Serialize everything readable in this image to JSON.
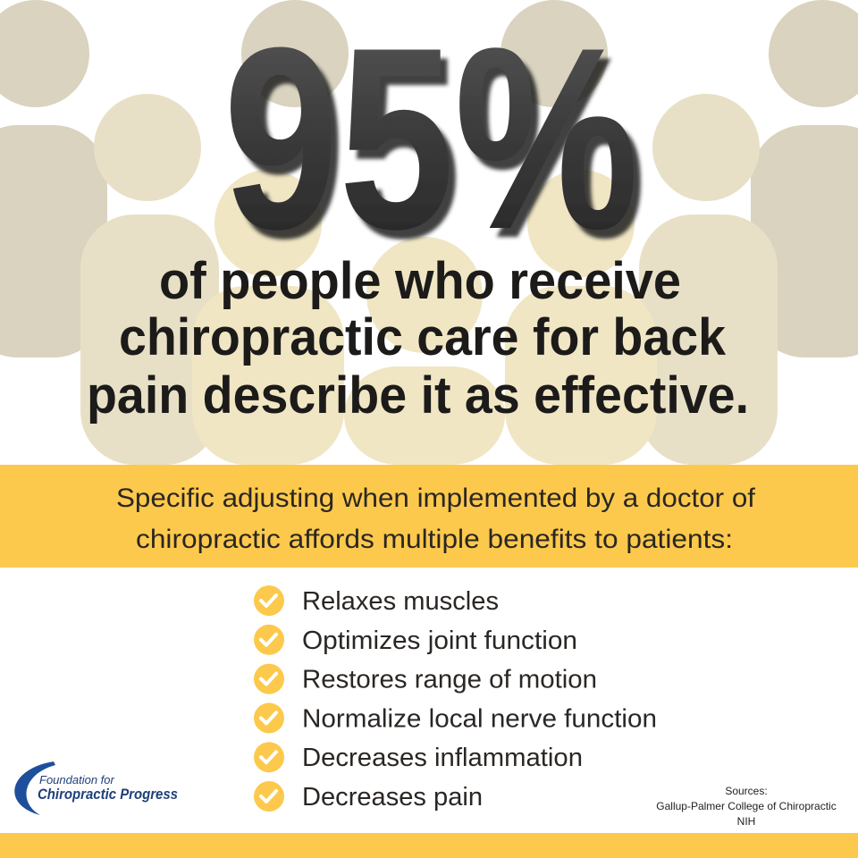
{
  "headline": "95%",
  "statement": [
    "of people who receive",
    "chiropractic care for back",
    "pain describe it as effective."
  ],
  "banner": [
    "Specific adjusting when implemented by a doctor of",
    "chiropractic affords multiple benefits to patients:"
  ],
  "benefits": [
    "Relaxes muscles",
    "Optimizes joint function",
    "Restores range of motion",
    "Normalize local nerve function",
    "Decreases inflammation",
    "Decreases pain"
  ],
  "logo": {
    "line1": "Foundation for",
    "line2": "Chiropractic Progress"
  },
  "sources": {
    "title": "Sources:",
    "items": [
      "Gallup-Palmer College of Chiropractic",
      "NIH"
    ]
  }
}
